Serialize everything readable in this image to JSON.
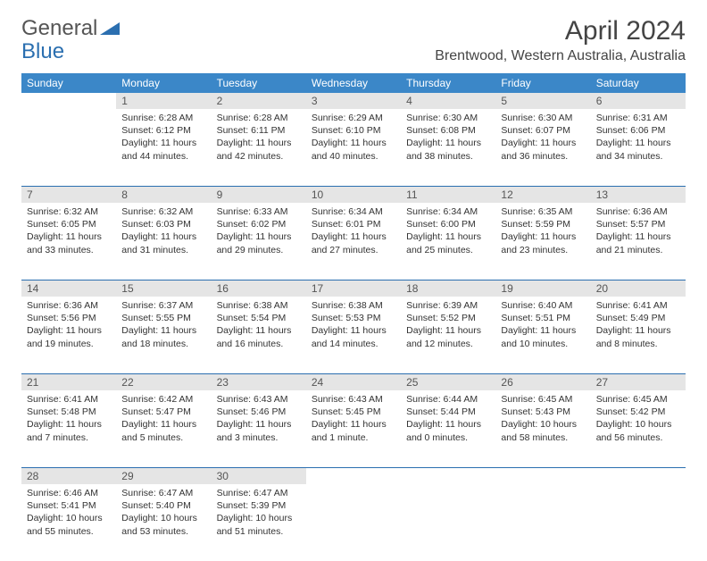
{
  "brand": {
    "part1": "General",
    "part2": "Blue"
  },
  "title": "April 2024",
  "location": "Brentwood, Western Australia, Australia",
  "colors": {
    "header_bg": "#3b87c8",
    "accent": "#2b6fb0",
    "daynum_bg": "#e5e5e5"
  },
  "dayHeaders": [
    "Sunday",
    "Monday",
    "Tuesday",
    "Wednesday",
    "Thursday",
    "Friday",
    "Saturday"
  ],
  "weeks": [
    [
      null,
      {
        "n": "1",
        "sr": "Sunrise: 6:28 AM",
        "ss": "Sunset: 6:12 PM",
        "d1": "Daylight: 11 hours",
        "d2": "and 44 minutes."
      },
      {
        "n": "2",
        "sr": "Sunrise: 6:28 AM",
        "ss": "Sunset: 6:11 PM",
        "d1": "Daylight: 11 hours",
        "d2": "and 42 minutes."
      },
      {
        "n": "3",
        "sr": "Sunrise: 6:29 AM",
        "ss": "Sunset: 6:10 PM",
        "d1": "Daylight: 11 hours",
        "d2": "and 40 minutes."
      },
      {
        "n": "4",
        "sr": "Sunrise: 6:30 AM",
        "ss": "Sunset: 6:08 PM",
        "d1": "Daylight: 11 hours",
        "d2": "and 38 minutes."
      },
      {
        "n": "5",
        "sr": "Sunrise: 6:30 AM",
        "ss": "Sunset: 6:07 PM",
        "d1": "Daylight: 11 hours",
        "d2": "and 36 minutes."
      },
      {
        "n": "6",
        "sr": "Sunrise: 6:31 AM",
        "ss": "Sunset: 6:06 PM",
        "d1": "Daylight: 11 hours",
        "d2": "and 34 minutes."
      }
    ],
    [
      {
        "n": "7",
        "sr": "Sunrise: 6:32 AM",
        "ss": "Sunset: 6:05 PM",
        "d1": "Daylight: 11 hours",
        "d2": "and 33 minutes."
      },
      {
        "n": "8",
        "sr": "Sunrise: 6:32 AM",
        "ss": "Sunset: 6:03 PM",
        "d1": "Daylight: 11 hours",
        "d2": "and 31 minutes."
      },
      {
        "n": "9",
        "sr": "Sunrise: 6:33 AM",
        "ss": "Sunset: 6:02 PM",
        "d1": "Daylight: 11 hours",
        "d2": "and 29 minutes."
      },
      {
        "n": "10",
        "sr": "Sunrise: 6:34 AM",
        "ss": "Sunset: 6:01 PM",
        "d1": "Daylight: 11 hours",
        "d2": "and 27 minutes."
      },
      {
        "n": "11",
        "sr": "Sunrise: 6:34 AM",
        "ss": "Sunset: 6:00 PM",
        "d1": "Daylight: 11 hours",
        "d2": "and 25 minutes."
      },
      {
        "n": "12",
        "sr": "Sunrise: 6:35 AM",
        "ss": "Sunset: 5:59 PM",
        "d1": "Daylight: 11 hours",
        "d2": "and 23 minutes."
      },
      {
        "n": "13",
        "sr": "Sunrise: 6:36 AM",
        "ss": "Sunset: 5:57 PM",
        "d1": "Daylight: 11 hours",
        "d2": "and 21 minutes."
      }
    ],
    [
      {
        "n": "14",
        "sr": "Sunrise: 6:36 AM",
        "ss": "Sunset: 5:56 PM",
        "d1": "Daylight: 11 hours",
        "d2": "and 19 minutes."
      },
      {
        "n": "15",
        "sr": "Sunrise: 6:37 AM",
        "ss": "Sunset: 5:55 PM",
        "d1": "Daylight: 11 hours",
        "d2": "and 18 minutes."
      },
      {
        "n": "16",
        "sr": "Sunrise: 6:38 AM",
        "ss": "Sunset: 5:54 PM",
        "d1": "Daylight: 11 hours",
        "d2": "and 16 minutes."
      },
      {
        "n": "17",
        "sr": "Sunrise: 6:38 AM",
        "ss": "Sunset: 5:53 PM",
        "d1": "Daylight: 11 hours",
        "d2": "and 14 minutes."
      },
      {
        "n": "18",
        "sr": "Sunrise: 6:39 AM",
        "ss": "Sunset: 5:52 PM",
        "d1": "Daylight: 11 hours",
        "d2": "and 12 minutes."
      },
      {
        "n": "19",
        "sr": "Sunrise: 6:40 AM",
        "ss": "Sunset: 5:51 PM",
        "d1": "Daylight: 11 hours",
        "d2": "and 10 minutes."
      },
      {
        "n": "20",
        "sr": "Sunrise: 6:41 AM",
        "ss": "Sunset: 5:49 PM",
        "d1": "Daylight: 11 hours",
        "d2": "and 8 minutes."
      }
    ],
    [
      {
        "n": "21",
        "sr": "Sunrise: 6:41 AM",
        "ss": "Sunset: 5:48 PM",
        "d1": "Daylight: 11 hours",
        "d2": "and 7 minutes."
      },
      {
        "n": "22",
        "sr": "Sunrise: 6:42 AM",
        "ss": "Sunset: 5:47 PM",
        "d1": "Daylight: 11 hours",
        "d2": "and 5 minutes."
      },
      {
        "n": "23",
        "sr": "Sunrise: 6:43 AM",
        "ss": "Sunset: 5:46 PM",
        "d1": "Daylight: 11 hours",
        "d2": "and 3 minutes."
      },
      {
        "n": "24",
        "sr": "Sunrise: 6:43 AM",
        "ss": "Sunset: 5:45 PM",
        "d1": "Daylight: 11 hours",
        "d2": "and 1 minute."
      },
      {
        "n": "25",
        "sr": "Sunrise: 6:44 AM",
        "ss": "Sunset: 5:44 PM",
        "d1": "Daylight: 11 hours",
        "d2": "and 0 minutes."
      },
      {
        "n": "26",
        "sr": "Sunrise: 6:45 AM",
        "ss": "Sunset: 5:43 PM",
        "d1": "Daylight: 10 hours",
        "d2": "and 58 minutes."
      },
      {
        "n": "27",
        "sr": "Sunrise: 6:45 AM",
        "ss": "Sunset: 5:42 PM",
        "d1": "Daylight: 10 hours",
        "d2": "and 56 minutes."
      }
    ],
    [
      {
        "n": "28",
        "sr": "Sunrise: 6:46 AM",
        "ss": "Sunset: 5:41 PM",
        "d1": "Daylight: 10 hours",
        "d2": "and 55 minutes."
      },
      {
        "n": "29",
        "sr": "Sunrise: 6:47 AM",
        "ss": "Sunset: 5:40 PM",
        "d1": "Daylight: 10 hours",
        "d2": "and 53 minutes."
      },
      {
        "n": "30",
        "sr": "Sunrise: 6:47 AM",
        "ss": "Sunset: 5:39 PM",
        "d1": "Daylight: 10 hours",
        "d2": "and 51 minutes."
      },
      null,
      null,
      null,
      null
    ]
  ]
}
